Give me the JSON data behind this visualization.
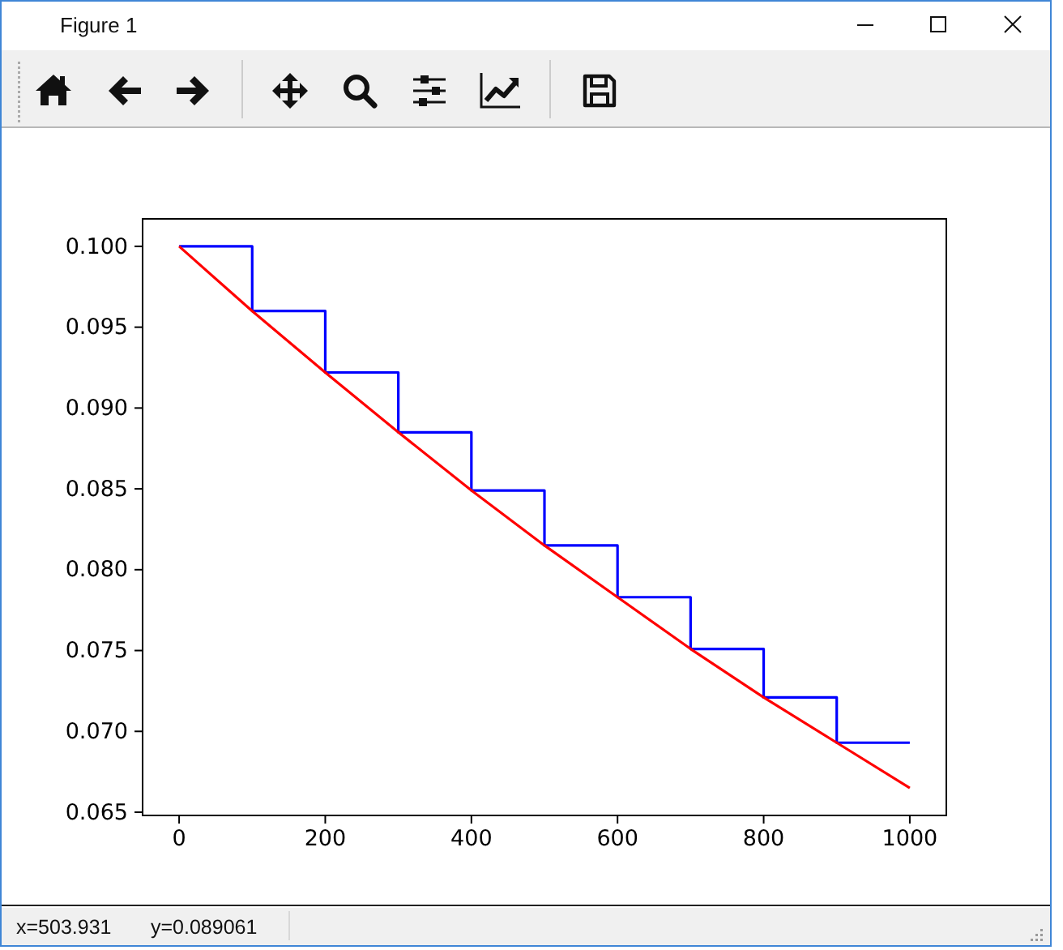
{
  "chart_data": {
    "type": "line",
    "annotations": [
      "Figure 1",
      "x=503.931",
      "y=0.089061"
    ],
    "x": [
      0,
      100,
      200,
      300,
      400,
      500,
      600,
      700,
      800,
      900,
      1000
    ],
    "series": [
      {
        "type": "step",
        "color": "#0000ff",
        "values": [
          0.1,
          0.096,
          0.0922,
          0.0885,
          0.0849,
          0.0815,
          0.0783,
          0.0751,
          0.0721,
          0.0693,
          0.0693
        ]
      },
      {
        "color": "#ff0000",
        "values": [
          0.1,
          0.096,
          0.0922,
          0.0885,
          0.0849,
          0.0815,
          0.0783,
          0.0751,
          0.0721,
          0.0693,
          0.0665
        ]
      }
    ],
    "xlim": [
      -50,
      1050
    ],
    "ylim": [
      0.0648,
      0.1017
    ],
    "xticks": [
      0,
      200,
      400,
      600,
      800,
      1000
    ],
    "yticks": [
      0.065,
      {
        "value": 0.07,
        "label": "0.070"
      },
      0.075,
      {
        "value": 0.08,
        "label": "0.080"
      },
      0.085,
      {
        "value": 0.09,
        "label": "0.090"
      },
      0.095,
      {
        "value": 0.1,
        "label": "0.100"
      }
    ]
  }
}
